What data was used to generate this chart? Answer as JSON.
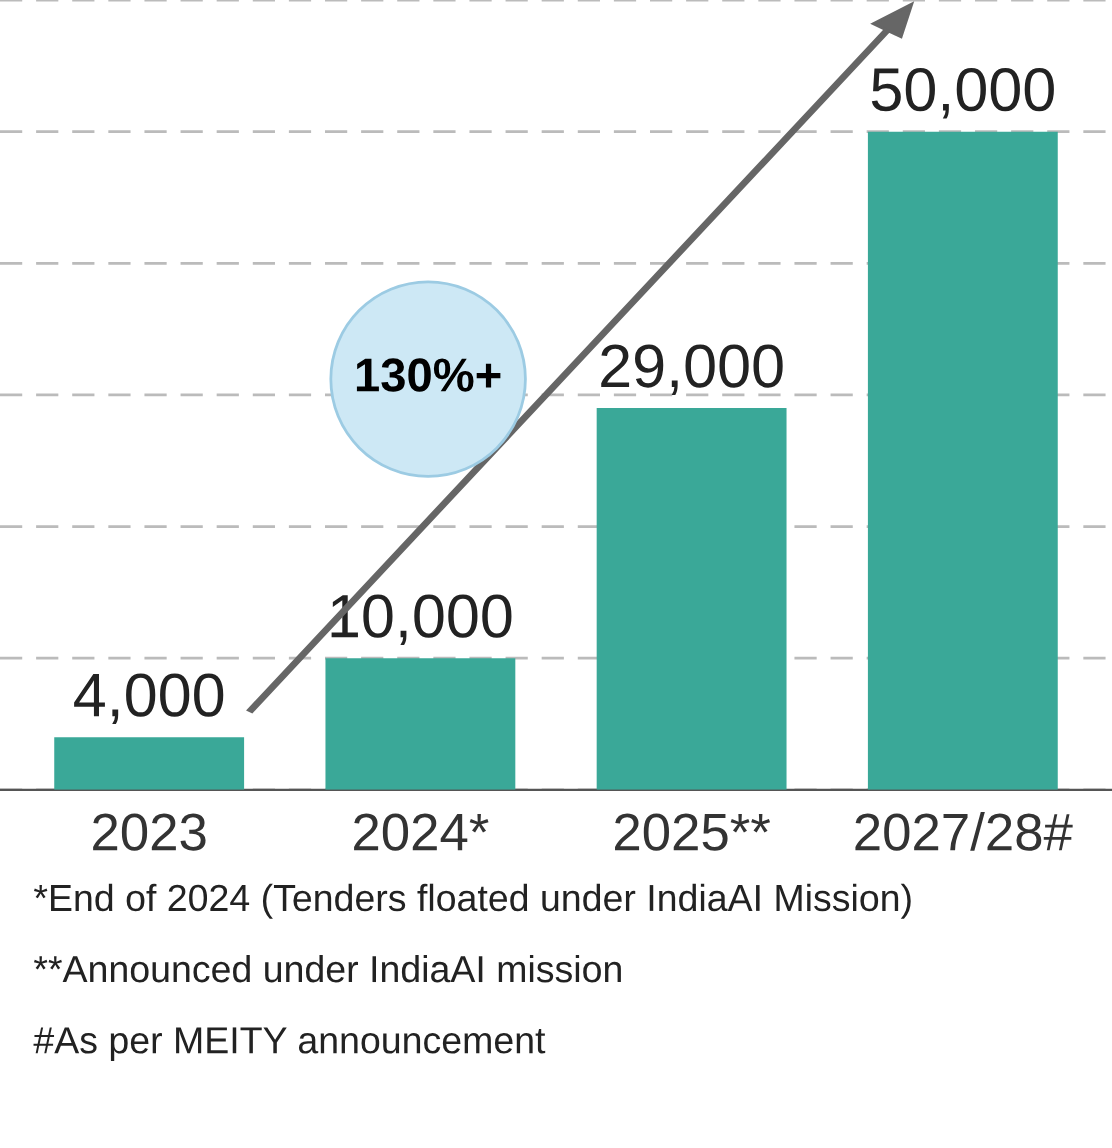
{
  "chart_data": {
    "type": "bar",
    "categories": [
      "2023",
      "2024*",
      "2025**",
      "2027/28#"
    ],
    "values": [
      4000,
      10000,
      29000,
      50000
    ],
    "value_labels": [
      "4,000",
      "10,000",
      "29,000",
      "50,000"
    ],
    "color": "#3aa898",
    "tick_labels": "x",
    "grid": "y",
    "annotations": [
      "130%+",
      "*End of 2024 (Tenders floated under IndiaAI Mission)",
      "**Announced under IndiaAI mission",
      "#As per MEITY announcement"
    ]
  }
}
